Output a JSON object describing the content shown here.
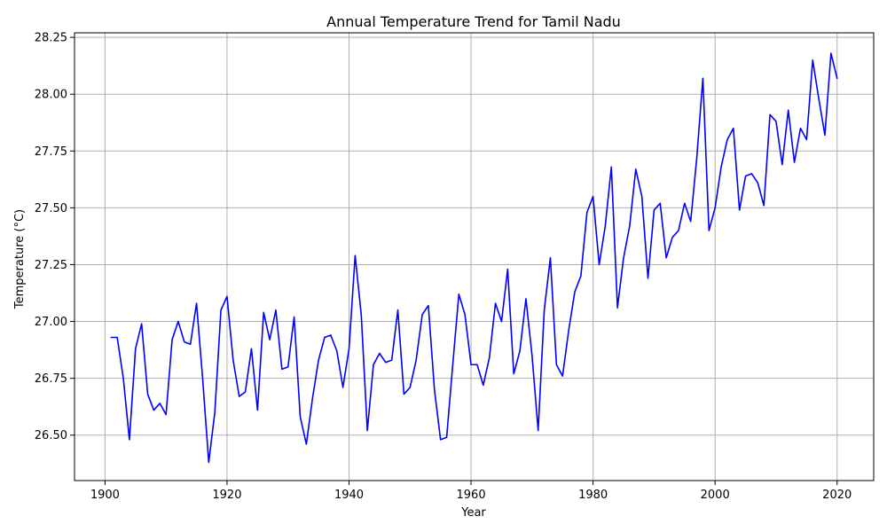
{
  "chart_data": {
    "type": "line",
    "title": "Annual Temperature Trend for Tamil Nadu",
    "xlabel": "Year",
    "ylabel": "Temperature (°C)",
    "xlim": [
      1895,
      2026
    ],
    "ylim": [
      26.3,
      28.27
    ],
    "xticks": [
      1900,
      1920,
      1940,
      1960,
      1980,
      2000,
      2020
    ],
    "yticks": [
      26.5,
      26.75,
      27.0,
      27.25,
      27.5,
      27.75,
      28.0,
      28.25
    ],
    "grid": true,
    "line_color": "#0000ff",
    "series": [
      {
        "x": [
          1901,
          1902,
          1903,
          1904,
          1905,
          1906,
          1907,
          1908,
          1909,
          1910,
          1911,
          1912,
          1913,
          1914,
          1915,
          1916,
          1917,
          1918,
          1919,
          1920,
          1921,
          1922,
          1923,
          1924,
          1925,
          1926,
          1927,
          1928,
          1929,
          1930,
          1931,
          1932,
          1933,
          1934,
          1935,
          1936,
          1937,
          1938,
          1939,
          1940,
          1941,
          1942,
          1943,
          1944,
          1945,
          1946,
          1947,
          1948,
          1949,
          1950,
          1951,
          1952,
          1953,
          1954,
          1955,
          1956,
          1957,
          1958,
          1959,
          1960,
          1961,
          1962,
          1963,
          1964,
          1965,
          1966,
          1967,
          1968,
          1969,
          1970,
          1971,
          1972,
          1973,
          1974,
          1975,
          1976,
          1977,
          1978,
          1979,
          1980,
          1981,
          1982,
          1983,
          1984,
          1985,
          1986,
          1987,
          1988,
          1989,
          1990,
          1991,
          1992,
          1993,
          1994,
          1995,
          1996,
          1997,
          1998,
          1999,
          2000,
          2001,
          2002,
          2003,
          2004,
          2005,
          2006,
          2007,
          2008,
          2009,
          2010,
          2011,
          2012,
          2013,
          2014,
          2015,
          2016,
          2017,
          2018,
          2019,
          2020
        ],
        "values": [
          26.93,
          26.93,
          26.75,
          26.48,
          26.88,
          26.99,
          26.68,
          26.61,
          26.64,
          26.59,
          26.92,
          27.0,
          26.91,
          26.9,
          27.08,
          26.75,
          26.38,
          26.6,
          27.05,
          27.11,
          26.83,
          26.67,
          26.69,
          26.88,
          26.61,
          27.04,
          26.92,
          27.05,
          26.79,
          26.8,
          27.02,
          26.58,
          26.46,
          26.66,
          26.83,
          26.93,
          26.94,
          26.87,
          26.71,
          26.88,
          27.29,
          27.03,
          26.52,
          26.81,
          26.86,
          26.82,
          26.83,
          27.05,
          26.68,
          26.71,
          26.83,
          27.03,
          27.07,
          26.7,
          26.48,
          26.49,
          26.81,
          27.12,
          27.03,
          26.81,
          26.81,
          26.72,
          26.84,
          27.08,
          27.0,
          27.23,
          26.77,
          26.87,
          27.1,
          26.85,
          26.52,
          27.05,
          27.28,
          26.81,
          26.76,
          26.96,
          27.13,
          27.2,
          27.48,
          27.55,
          27.25,
          27.42,
          27.68,
          27.06,
          27.28,
          27.42,
          27.67,
          27.55,
          27.19,
          27.49,
          27.52,
          27.28,
          27.37,
          27.4,
          27.52,
          27.44,
          27.72,
          28.07,
          27.4,
          27.5,
          27.68,
          27.8,
          27.85,
          27.49,
          27.64,
          27.65,
          27.61,
          27.51,
          27.91,
          27.88,
          27.69,
          27.93,
          27.7,
          27.85,
          27.8,
          28.15,
          27.98,
          27.82,
          28.18,
          28.07
        ]
      }
    ]
  }
}
